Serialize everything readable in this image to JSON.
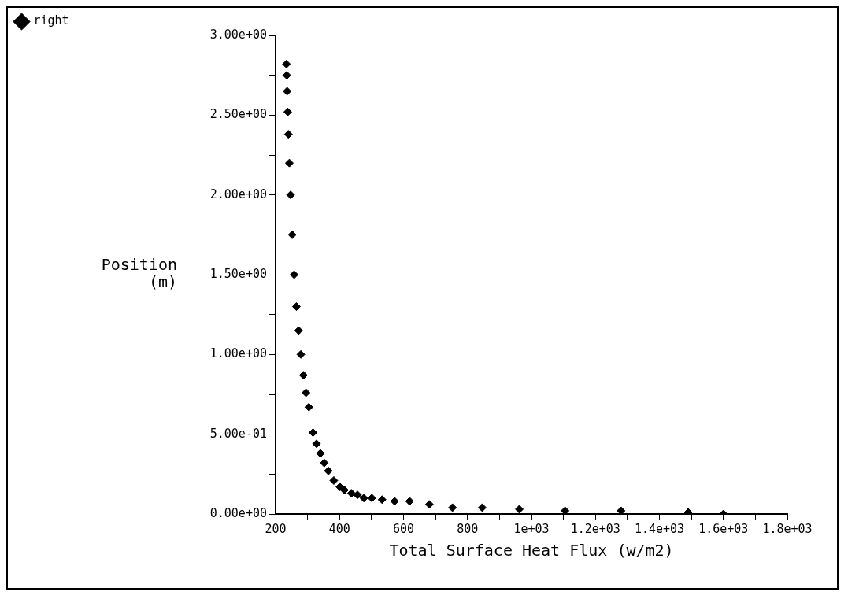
{
  "chart_data": {
    "type": "scatter",
    "xlabel": "Total Surface Heat Flux (w/m2)",
    "ylabel": "Position\n(m)",
    "legend": "top left",
    "marker": "diamond",
    "xlim": [
      200,
      1800
    ],
    "ylim": [
      0,
      3
    ],
    "xticks": [
      200,
      {
        "value": 300,
        "label": null
      },
      400,
      {
        "value": 500,
        "label": null
      },
      600,
      {
        "value": 700,
        "label": null
      },
      800,
      {
        "value": 900,
        "label": null
      },
      {
        "value": 1000,
        "label": "1e+03"
      },
      {
        "value": 1100,
        "label": null
      },
      {
        "value": 1200,
        "label": "1.2e+03"
      },
      {
        "value": 1300,
        "label": null
      },
      {
        "value": 1400,
        "label": "1.4e+03"
      },
      {
        "value": 1500,
        "label": null
      },
      {
        "value": 1600,
        "label": "1.6e+03"
      },
      {
        "value": 1700,
        "label": null
      },
      {
        "value": 1800,
        "label": "1.8e+03"
      }
    ],
    "yticks": [
      {
        "value": 0,
        "label": "0.00e+00"
      },
      {
        "value": 0.25,
        "label": null
      },
      {
        "value": 0.5,
        "label": "5.00e-01"
      },
      {
        "value": 0.75,
        "label": null
      },
      {
        "value": 1,
        "label": "1.00e+00"
      },
      {
        "value": 1.25,
        "label": null
      },
      {
        "value": 1.5,
        "label": "1.50e+00"
      },
      {
        "value": 1.75,
        "label": null
      },
      {
        "value": 2,
        "label": "2.00e+00"
      },
      {
        "value": 2.25,
        "label": null
      },
      {
        "value": 2.5,
        "label": "2.50e+00"
      },
      {
        "value": 2.75,
        "label": null
      },
      {
        "value": 3,
        "label": "3.00e+00"
      }
    ],
    "series": [
      {
        "name": "right",
        "color": "#000000",
        "x": [
          234,
          235,
          236,
          238,
          240,
          243,
          247,
          252,
          258,
          265,
          272,
          279,
          287,
          295,
          304,
          317,
          328,
          340,
          352,
          365,
          382,
          401,
          415,
          437,
          456,
          476,
          501,
          533,
          572,
          619,
          681,
          753,
          846,
          962,
          1105,
          1280,
          1490,
          1600
        ],
        "values": [
          2.82,
          2.75,
          2.65,
          2.52,
          2.38,
          2.2,
          2.0,
          1.75,
          1.5,
          1.3,
          1.15,
          1.0,
          0.87,
          0.76,
          0.67,
          0.51,
          0.44,
          0.38,
          0.32,
          0.27,
          0.21,
          0.17,
          0.15,
          0.13,
          0.12,
          0.1,
          0.1,
          0.09,
          0.08,
          0.08,
          0.06,
          0.04,
          0.04,
          0.03,
          0.02,
          0.02,
          0.01,
          0
        ]
      }
    ]
  }
}
